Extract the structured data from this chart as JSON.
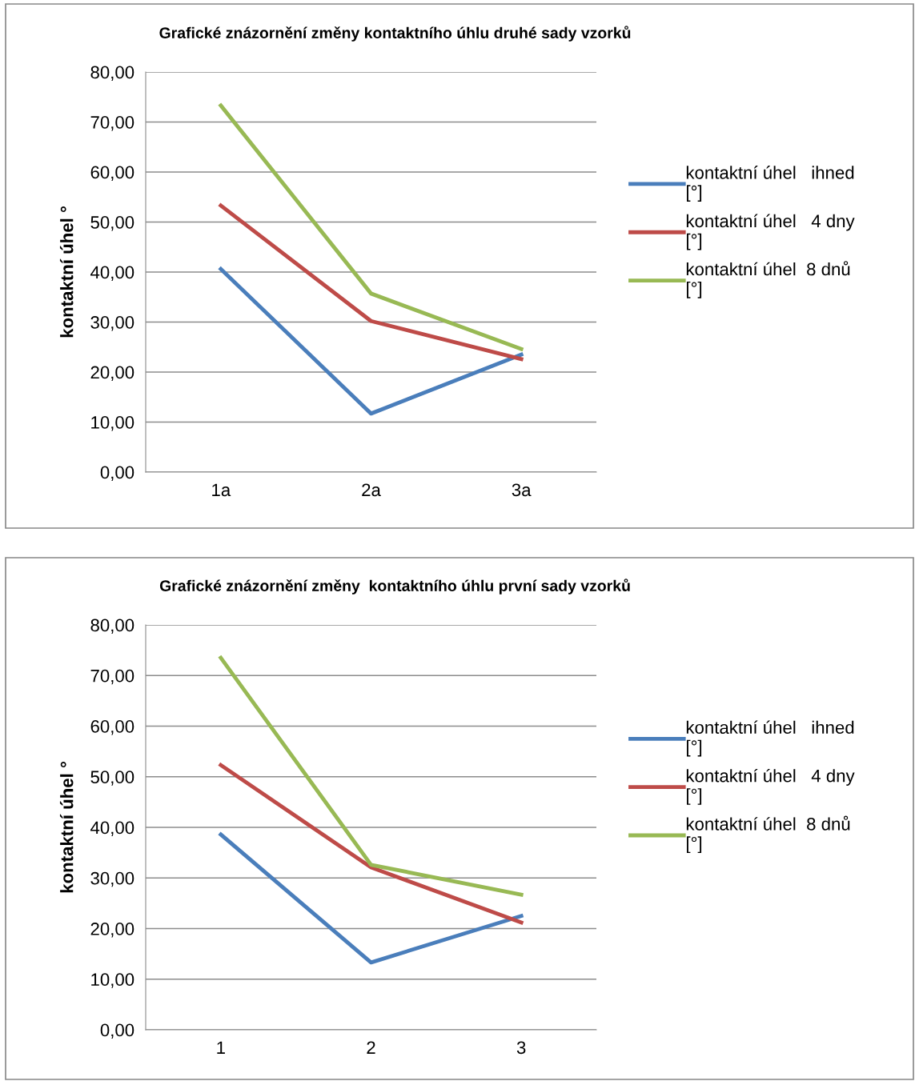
{
  "chart_data": [
    {
      "type": "line",
      "title": "Grafické znázornění změny kontaktního úhlu druhé sady vzorků",
      "ylabel": "kontaktní úhel °",
      "categories": [
        "1a",
        "2a",
        "3a"
      ],
      "series": [
        {
          "name": "kontaktní úhel   ihned [°]",
          "color": "#4a7ebb",
          "values": [
            40.6,
            11.7,
            23.5
          ]
        },
        {
          "name": "kontaktní úhel   4 dny [°]",
          "color": "#be4b48",
          "values": [
            53.3,
            30.2,
            22.6
          ]
        },
        {
          "name": "kontaktní úhel  8 dnů [°]",
          "color": "#98b954",
          "values": [
            73.3,
            35.7,
            24.6
          ]
        }
      ],
      "ylim": [
        0,
        80
      ],
      "yticks": [
        {
          "value": 0,
          "label": "0,00"
        },
        {
          "value": 10,
          "label": "10,00"
        },
        {
          "value": 20,
          "label": "20,00"
        },
        {
          "value": 30,
          "label": "30,00"
        },
        {
          "value": 40,
          "label": "40,00"
        },
        {
          "value": 50,
          "label": "50,00"
        },
        {
          "value": 60,
          "label": "60,00"
        },
        {
          "value": 70,
          "label": "70,00"
        },
        {
          "value": 80,
          "label": "80,00"
        }
      ],
      "grid": "y",
      "legend": "right",
      "marker": "none",
      "line_style": "solid"
    },
    {
      "type": "line",
      "title": "Grafické znázornění změny  kontaktního úhlu první sady vzorků",
      "ylabel": "kontaktní úhel °",
      "categories": [
        "1",
        "2",
        "3"
      ],
      "series": [
        {
          "name": "kontaktní úhel   ihned [°]",
          "color": "#4a7ebb",
          "values": [
            38.6,
            13.3,
            22.5
          ]
        },
        {
          "name": "kontaktní úhel   4 dny [°]",
          "color": "#be4b48",
          "values": [
            52.3,
            32.1,
            21.2
          ]
        },
        {
          "name": "kontaktní úhel  8 dnů [°]",
          "color": "#98b954",
          "values": [
            73.5,
            32.6,
            26.7
          ]
        }
      ],
      "ylim": [
        0,
        80
      ],
      "yticks": [
        {
          "value": 0,
          "label": "0,00"
        },
        {
          "value": 10,
          "label": "10,00"
        },
        {
          "value": 20,
          "label": "20,00"
        },
        {
          "value": 30,
          "label": "30,00"
        },
        {
          "value": 40,
          "label": "40,00"
        },
        {
          "value": 50,
          "label": "50,00"
        },
        {
          "value": 60,
          "label": "60,00"
        },
        {
          "value": 70,
          "label": "70,00"
        },
        {
          "value": 80,
          "label": "80,00"
        }
      ],
      "grid": "y",
      "legend": "right",
      "marker": "none",
      "line_style": "solid"
    }
  ]
}
